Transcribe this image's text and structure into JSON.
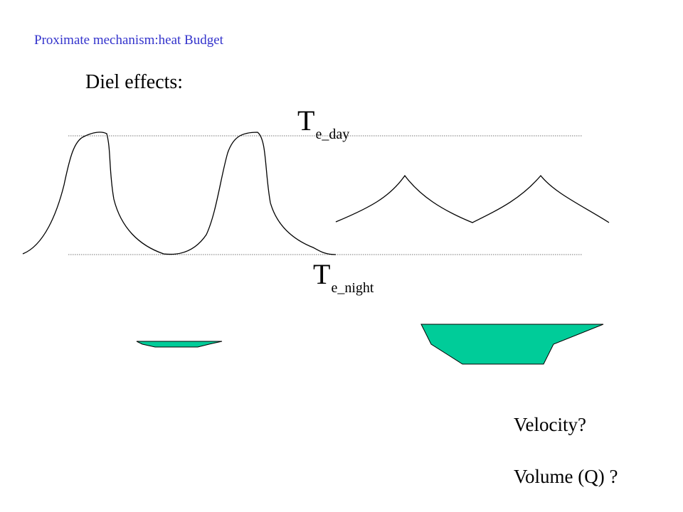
{
  "header": {
    "title": "Proximate mechanism:heat Budget"
  },
  "subtitle": "Diel effects:",
  "labels": {
    "day": {
      "main": "T",
      "sub": "e_day"
    },
    "night": {
      "main": "T",
      "sub": "e_night"
    }
  },
  "questions": {
    "velocity": "Velocity?",
    "volume": "Volume (Q) ?"
  },
  "colors": {
    "header_text": "#3333cc",
    "channel_fill": "#00cc99",
    "line": "#000000"
  }
}
